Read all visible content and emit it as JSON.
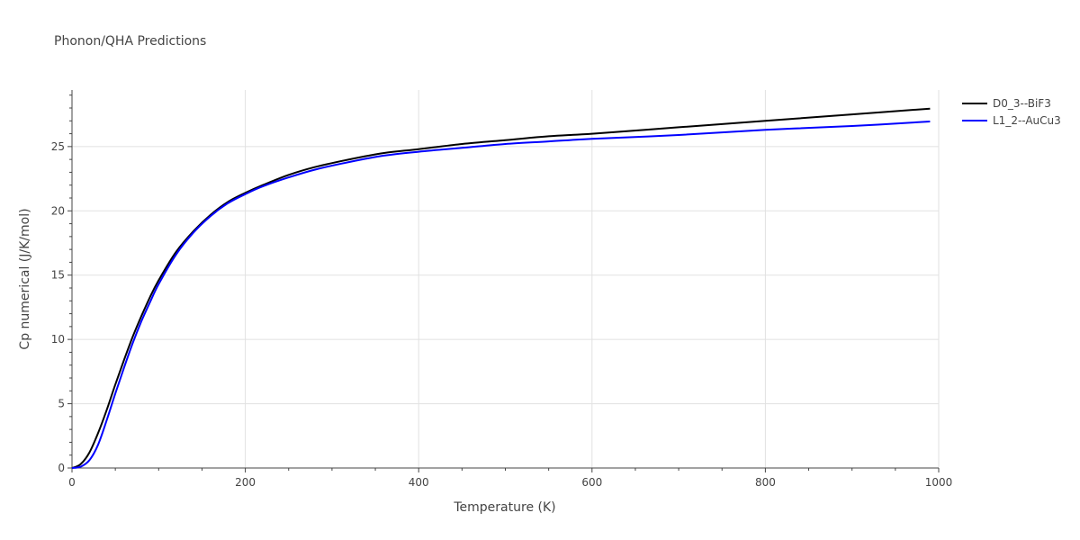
{
  "chart_data": {
    "type": "line",
    "title": "Phonon/QHA Predictions",
    "xlabel": "Temperature (K)",
    "ylabel": "Cp numerical (J/K/mol)",
    "xlim": [
      0,
      1000
    ],
    "ylim": [
      0,
      29.4
    ],
    "x_ticks": [
      0,
      200,
      400,
      600,
      800,
      1000
    ],
    "y_ticks": [
      0,
      5,
      10,
      15,
      20,
      25
    ],
    "x_tick_labels": [
      "0",
      "200",
      "400",
      "600",
      "800",
      "1000"
    ],
    "y_tick_labels": [
      "0",
      "5",
      "10",
      "15",
      "20",
      "25"
    ],
    "grid": true,
    "legend_position": "top-right",
    "series": [
      {
        "name": "D0_3--BiF3",
        "color": "#000000",
        "x": [
          0,
          10,
          20,
          30,
          40,
          50,
          60,
          70,
          80,
          90,
          100,
          120,
          140,
          160,
          180,
          200,
          220,
          250,
          280,
          320,
          360,
          400,
          450,
          500,
          550,
          600,
          700,
          800,
          900,
          990
        ],
        "y": [
          0,
          0.3,
          1.2,
          2.7,
          4.5,
          6.5,
          8.4,
          10.2,
          11.8,
          13.3,
          14.6,
          16.8,
          18.4,
          19.7,
          20.7,
          21.4,
          22.0,
          22.8,
          23.4,
          24.0,
          24.5,
          24.8,
          25.2,
          25.5,
          25.8,
          26.0,
          26.5,
          27.0,
          27.5,
          27.95
        ]
      },
      {
        "name": "L1_2--AuCu3",
        "color": "#0000ff",
        "x": [
          0,
          10,
          20,
          30,
          40,
          50,
          60,
          70,
          80,
          90,
          100,
          120,
          140,
          160,
          180,
          200,
          220,
          250,
          280,
          320,
          360,
          400,
          450,
          500,
          550,
          600,
          700,
          800,
          900,
          990
        ],
        "y": [
          0,
          0.1,
          0.6,
          1.8,
          3.7,
          5.8,
          7.8,
          9.7,
          11.4,
          12.9,
          14.3,
          16.6,
          18.3,
          19.6,
          20.6,
          21.3,
          21.9,
          22.6,
          23.2,
          23.8,
          24.3,
          24.6,
          24.9,
          25.2,
          25.4,
          25.6,
          25.9,
          26.3,
          26.6,
          26.95
        ]
      }
    ]
  }
}
